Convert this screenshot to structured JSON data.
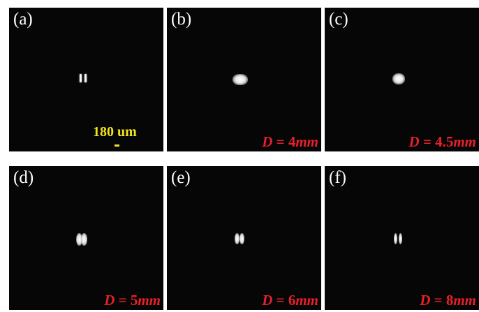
{
  "panels": [
    {
      "label": "(a)",
      "distance": null
    },
    {
      "label": "(b)",
      "distance": {
        "var": "D",
        "eq": " = ",
        "value": "4",
        "unit": "mm"
      }
    },
    {
      "label": "(c)",
      "distance": {
        "var": "D",
        "eq": " = ",
        "value": "4.5",
        "unit": "mm"
      }
    },
    {
      "label": "(d)",
      "distance": {
        "var": "D",
        "eq": " = ",
        "value": "5",
        "unit": "mm"
      }
    },
    {
      "label": "(e)",
      "distance": {
        "var": "D",
        "eq": " = ",
        "value": "6",
        "unit": "mm"
      }
    },
    {
      "label": "(f)",
      "distance": {
        "var": "D",
        "eq": " = ",
        "value": "8",
        "unit": "mm"
      }
    }
  ],
  "scale_bar": {
    "text": "180 um",
    "color": "#f2e21e"
  },
  "colors": {
    "background": "#060606",
    "distance_label": "#e8202a",
    "panel_label": "#ffffff"
  }
}
